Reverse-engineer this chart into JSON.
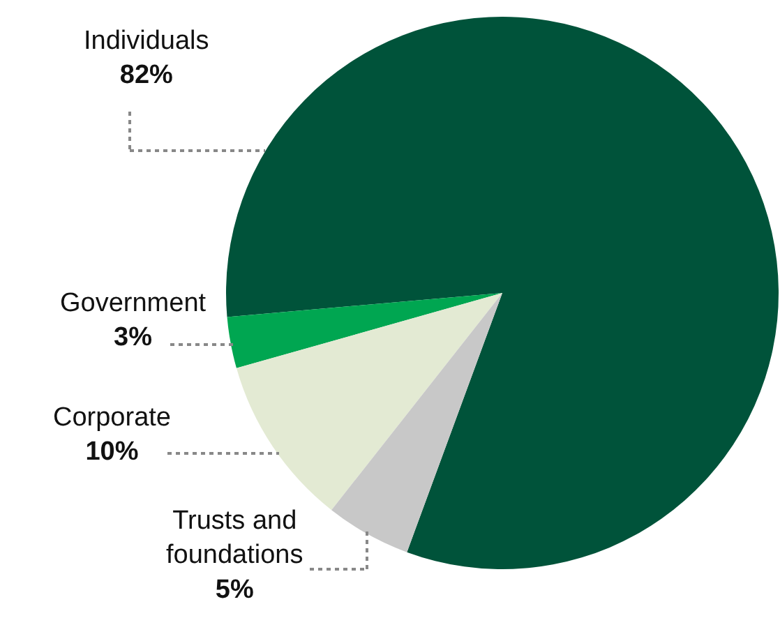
{
  "chart_data": {
    "type": "pie",
    "categories": [
      "Individuals",
      "Government",
      "Corporate",
      "Trusts and foundations"
    ],
    "values": [
      82,
      3,
      10,
      5
    ],
    "value_labels": [
      "82%",
      "3%",
      "10%",
      "5%"
    ],
    "colors": [
      "#00533a",
      "#00a651",
      "#e3ead3",
      "#c8c8c8"
    ],
    "legend": false
  }
}
